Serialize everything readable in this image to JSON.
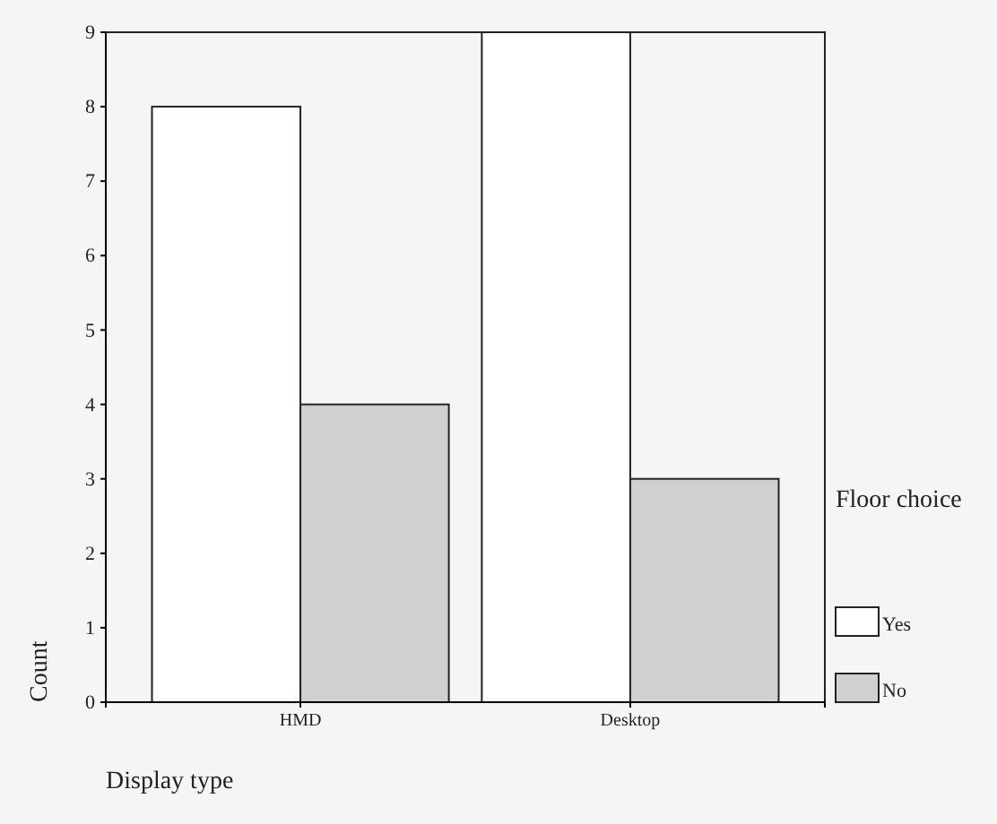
{
  "chart_data": {
    "type": "bar",
    "xlabel": "Display type",
    "ylabel": "Count",
    "legend_title": "Floor choice",
    "categories": [
      "HMD",
      "Desktop"
    ],
    "series": [
      {
        "name": "Yes",
        "color": "#ffffff",
        "values": [
          8,
          9
        ]
      },
      {
        "name": "No",
        "color": "#d0d0d0",
        "values": [
          4,
          3
        ]
      }
    ],
    "ylim": [
      0,
      9
    ],
    "yticks": [
      0,
      1,
      2,
      3,
      4,
      5,
      6,
      7,
      8,
      9
    ],
    "grid": false,
    "legend": "right"
  }
}
